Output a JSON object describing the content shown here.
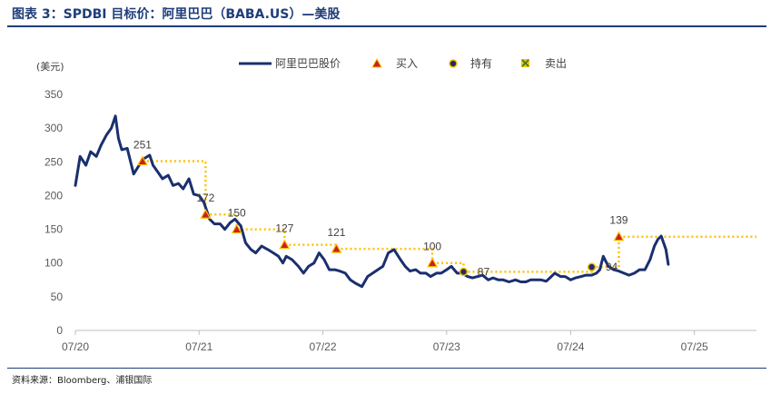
{
  "header": {
    "title": "图表 3：SPDBI 目标价：阿里巴巴（BABA.US）—美股"
  },
  "footer": {
    "source": "资料来源：Bloomberg、浦银国际"
  },
  "colors": {
    "price": "#1a2f6e",
    "buy": "#cc1f1f",
    "buy_fill": "#ffc000",
    "target_line": "#ffc000",
    "hold": "#1a2f6e",
    "hold_fill": "#ffc000",
    "sell": "#2e7d32",
    "title": "#1f3d7a"
  },
  "chart_data": {
    "type": "line",
    "title": "",
    "ylabel": "(美元)",
    "xlabel": "",
    "ylim": [
      0,
      350
    ],
    "yticks": [
      0,
      50,
      100,
      150,
      200,
      250,
      300,
      350
    ],
    "xticks": [
      "07/20",
      "07/21",
      "07/22",
      "07/23",
      "07/24",
      "07/25"
    ],
    "xlim": [
      "2020-07-01",
      "2025-12-31"
    ],
    "grid": false,
    "legend": {
      "placement": "top",
      "items": [
        {
          "label": "阿里巴巴股价",
          "icon": "line"
        },
        {
          "label": "买入",
          "icon": "triangle"
        },
        {
          "label": "持有",
          "icon": "circle"
        },
        {
          "label": "卖出",
          "icon": "x-square"
        }
      ]
    },
    "series": [
      {
        "name": "阿里巴巴股价",
        "x": [
          "2020-07-01",
          "2020-07-15",
          "2020-08-01",
          "2020-08-15",
          "2020-09-01",
          "2020-09-15",
          "2020-10-01",
          "2020-10-15",
          "2020-10-27",
          "2020-11-05",
          "2020-11-15",
          "2020-12-01",
          "2020-12-20",
          "2021-01-05",
          "2021-01-20",
          "2021-02-05",
          "2021-02-15",
          "2021-03-01",
          "2021-03-15",
          "2021-04-01",
          "2021-04-15",
          "2021-05-01",
          "2021-05-15",
          "2021-06-01",
          "2021-06-15",
          "2021-07-01",
          "2021-07-15",
          "2021-08-01",
          "2021-08-15",
          "2021-09-01",
          "2021-09-15",
          "2021-10-01",
          "2021-10-15",
          "2021-11-01",
          "2021-11-15",
          "2021-12-01",
          "2021-12-15",
          "2022-01-01",
          "2022-01-20",
          "2022-02-05",
          "2022-02-20",
          "2022-03-05",
          "2022-03-15",
          "2022-04-01",
          "2022-04-20",
          "2022-05-05",
          "2022-05-20",
          "2022-06-05",
          "2022-06-20",
          "2022-07-05",
          "2022-07-20",
          "2022-08-05",
          "2022-08-20",
          "2022-09-05",
          "2022-09-20",
          "2022-10-05",
          "2022-10-24",
          "2022-11-10",
          "2022-11-25",
          "2022-12-10",
          "2022-12-25",
          "2023-01-10",
          "2023-01-27",
          "2023-02-15",
          "2023-03-01",
          "2023-03-15",
          "2023-04-01",
          "2023-04-15",
          "2023-05-01",
          "2023-05-15",
          "2023-06-01",
          "2023-06-15",
          "2023-07-01",
          "2023-07-15",
          "2023-08-01",
          "2023-08-15",
          "2023-09-01",
          "2023-09-15",
          "2023-10-01",
          "2023-10-15",
          "2023-11-01",
          "2023-11-15",
          "2023-12-01",
          "2023-12-15",
          "2024-01-01",
          "2024-01-20",
          "2024-02-05",
          "2024-02-20",
          "2024-03-05",
          "2024-03-20",
          "2024-04-05",
          "2024-04-20",
          "2024-05-05",
          "2024-05-15",
          "2024-06-01",
          "2024-06-15",
          "2024-07-01",
          "2024-07-15",
          "2024-08-01",
          "2024-08-15",
          "2024-09-01",
          "2024-09-15",
          "2024-09-25",
          "2024-10-05",
          "2024-10-20",
          "2024-11-05",
          "2024-11-20",
          "2024-12-05",
          "2024-12-20",
          "2025-01-05",
          "2025-01-20",
          "2025-02-05",
          "2025-02-20",
          "2025-03-05",
          "2025-03-15",
          "2025-03-25",
          "2025-04-08",
          "2025-04-15"
        ],
        "values": [
          215,
          258,
          245,
          265,
          258,
          275,
          290,
          300,
          318,
          285,
          268,
          270,
          232,
          245,
          255,
          260,
          245,
          235,
          225,
          230,
          215,
          218,
          210,
          225,
          202,
          200,
          190,
          165,
          158,
          158,
          150,
          160,
          165,
          155,
          130,
          120,
          115,
          125,
          120,
          115,
          110,
          100,
          110,
          105,
          95,
          85,
          95,
          100,
          115,
          105,
          90,
          90,
          88,
          85,
          75,
          70,
          65,
          80,
          85,
          90,
          95,
          115,
          120,
          105,
          95,
          88,
          90,
          85,
          85,
          80,
          85,
          85,
          90,
          95,
          85,
          85,
          80,
          78,
          80,
          82,
          75,
          78,
          75,
          75,
          72,
          75,
          72,
          72,
          75,
          75,
          75,
          73,
          80,
          85,
          80,
          80,
          75,
          78,
          80,
          82,
          82,
          85,
          90,
          110,
          95,
          90,
          88,
          85,
          82,
          85,
          90,
          90,
          105,
          125,
          135,
          140,
          120,
          98
        ]
      }
    ],
    "annotations": [
      {
        "date": "2021-01-15",
        "price": 251,
        "label": "251",
        "rating": "buy"
      },
      {
        "date": "2021-07-20",
        "price": 172,
        "label": "172",
        "rating": "buy"
      },
      {
        "date": "2021-10-20",
        "price": 150,
        "label": "150",
        "rating": "buy"
      },
      {
        "date": "2022-03-10",
        "price": 127,
        "label": "127",
        "rating": "buy"
      },
      {
        "date": "2022-08-10",
        "price": 121,
        "label": "121",
        "rating": "buy"
      },
      {
        "date": "2023-05-20",
        "price": 100,
        "label": "100",
        "rating": "buy"
      },
      {
        "date": "2023-08-20",
        "price": 87,
        "label": "87",
        "rating": "hold"
      },
      {
        "date": "2024-09-01",
        "price": 94,
        "label": "94",
        "rating": "hold"
      },
      {
        "date": "2024-11-20",
        "price": 139,
        "label": "139",
        "rating": "buy"
      }
    ]
  }
}
